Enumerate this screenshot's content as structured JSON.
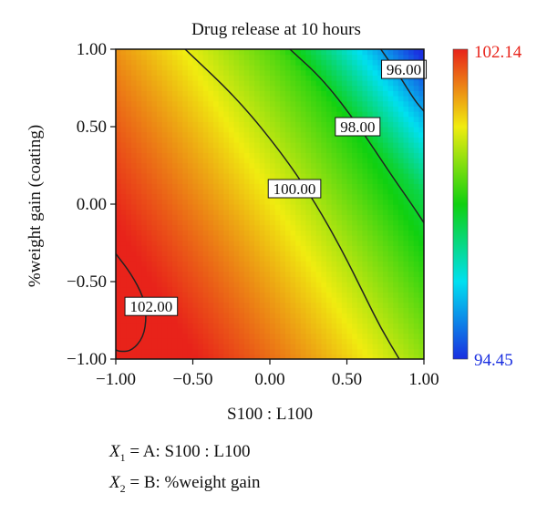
{
  "chart_data": {
    "type": "heatmap",
    "title": "Drug release at 10 hours",
    "xlabel": "S100 : L100",
    "ylabel": "%weight gain (coating)",
    "xlim": [
      -1.0,
      1.0
    ],
    "ylim": [
      -1.0,
      1.0
    ],
    "x_ticks": [
      "−1.00",
      "−0.50",
      "0.00",
      "0.50",
      "1.00"
    ],
    "y_ticks": [
      "−1.00",
      "−0.50",
      "0.00",
      "0.50",
      "1.00"
    ],
    "z_range": [
      94.45,
      102.14
    ],
    "colorbar": {
      "max_label": "102.14",
      "min_label": "94.45",
      "max_color": "#e8231a",
      "min_color": "#1a2fe0"
    },
    "contours": [
      {
        "level": 102.0,
        "label": "102.00",
        "points": [
          [
            -1.0,
            -0.32
          ],
          [
            -0.9,
            -0.45
          ],
          [
            -0.82,
            -0.6
          ],
          [
            -0.8,
            -0.72
          ],
          [
            -0.82,
            -0.86
          ],
          [
            -0.9,
            -0.95
          ],
          [
            -0.98,
            -0.95
          ],
          [
            -1.0,
            -0.94
          ]
        ]
      },
      {
        "level": 100.0,
        "label": "100.00",
        "points": [
          [
            -0.55,
            1.0
          ],
          [
            -0.2,
            0.67
          ],
          [
            0.1,
            0.3
          ],
          [
            0.3,
            0.0
          ],
          [
            0.47,
            -0.3
          ],
          [
            0.62,
            -0.6
          ],
          [
            0.72,
            -0.8
          ],
          [
            0.84,
            -1.0
          ]
        ]
      },
      {
        "level": 98.0,
        "label": "98.00",
        "points": [
          [
            0.13,
            1.0
          ],
          [
            0.35,
            0.8
          ],
          [
            0.58,
            0.5
          ],
          [
            0.78,
            0.2
          ],
          [
            0.92,
            0.0
          ],
          [
            1.0,
            -0.12
          ]
        ]
      },
      {
        "level": 96.0,
        "label": "96.00",
        "points": [
          [
            0.72,
            1.0
          ],
          [
            0.84,
            0.83
          ],
          [
            0.94,
            0.67
          ],
          [
            1.0,
            0.6
          ]
        ]
      }
    ],
    "contour_labels": [
      {
        "text": "102.00",
        "x": -0.77,
        "y": -0.66
      },
      {
        "text": "100.00",
        "x": 0.16,
        "y": 0.1
      },
      {
        "text": "98.00",
        "x": 0.57,
        "y": 0.5
      },
      {
        "text": "96.00",
        "x": 0.87,
        "y": 0.87
      }
    ],
    "factors": [
      {
        "symbol": "X",
        "sub": "1",
        "text": "= A: S100 : L100"
      },
      {
        "symbol": "X",
        "sub": "2",
        "text": "= B: %weight gain"
      }
    ]
  }
}
